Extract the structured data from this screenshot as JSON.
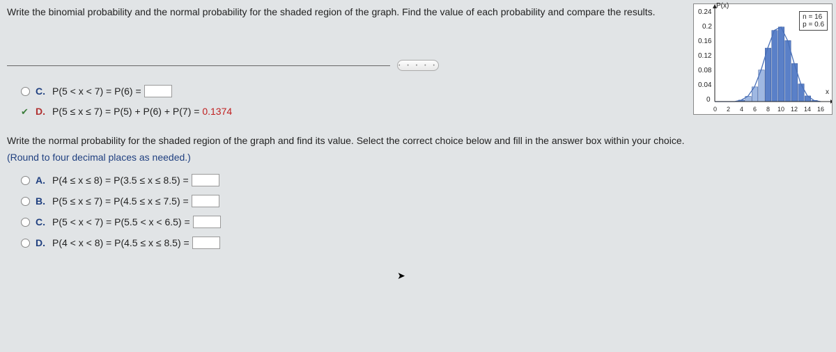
{
  "question": "Write the binomial probability and the normal probability for the shaded region of the graph. Find the value of each probability and compare the results.",
  "chart": {
    "y_label": "P(x)",
    "y_ticks": [
      "0.24",
      "0.2",
      "0.16",
      "0.12",
      "0.08",
      "0.04",
      "0"
    ],
    "x_ticks": [
      "0",
      "2",
      "4",
      "6",
      "8",
      "10",
      "12",
      "14",
      "16"
    ],
    "x_label": "x",
    "params": {
      "n": "n = 16",
      "p": "p = 0.6"
    },
    "type": "histogram",
    "bars": [
      {
        "x": 0,
        "h": 0
      },
      {
        "x": 1,
        "h": 0
      },
      {
        "x": 2,
        "h": 0
      },
      {
        "x": 3,
        "h": 0
      },
      {
        "x": 4,
        "h": 0.004
      },
      {
        "x": 5,
        "h": 0.014,
        "shaded": true
      },
      {
        "x": 6,
        "h": 0.039,
        "shaded": true
      },
      {
        "x": 7,
        "h": 0.084,
        "shaded": true
      },
      {
        "x": 8,
        "h": 0.142
      },
      {
        "x": 9,
        "h": 0.189
      },
      {
        "x": 10,
        "h": 0.198
      },
      {
        "x": 11,
        "h": 0.162
      },
      {
        "x": 12,
        "h": 0.101
      },
      {
        "x": 13,
        "h": 0.047
      },
      {
        "x": 14,
        "h": 0.015
      },
      {
        "x": 15,
        "h": 0.003
      },
      {
        "x": 16,
        "h": 0
      }
    ],
    "bar_color": "#5a80c8",
    "bar_shaded_color": "#9fb8e2",
    "curve_color": "#4a70b8",
    "background_color": "#ffffff",
    "ylim": [
      0,
      0.24
    ]
  },
  "divider_glyph": "• • • • •",
  "binom_options": {
    "c": {
      "letter": "C.",
      "text": "P(5 < x < 7) = P(6) =",
      "has_box": true
    },
    "d": {
      "letter": "D.",
      "text": "P(5 ≤ x ≤ 7) = P(5) + P(6) + P(7) = ",
      "answer": "0.1374"
    }
  },
  "instruction2": "Write the normal probability for the shaded region of the graph and find its value. Select the correct choice below and fill in the answer box within your choice.",
  "rounding": "(Round to four decimal places as needed.)",
  "norm_options": {
    "a": {
      "letter": "A.",
      "text": "P(4 ≤ x ≤ 8) = P(3.5 ≤ x ≤ 8.5) ="
    },
    "b": {
      "letter": "B.",
      "text": "P(5 ≤ x ≤ 7) = P(4.5 ≤ x ≤ 7.5) ="
    },
    "c": {
      "letter": "C.",
      "text": "P(5 < x < 7) = P(5.5 < x < 6.5) ="
    },
    "d": {
      "letter": "D.",
      "text": "P(4 < x < 8) = P(4.5 ≤ x ≤ 8.5) ="
    }
  }
}
